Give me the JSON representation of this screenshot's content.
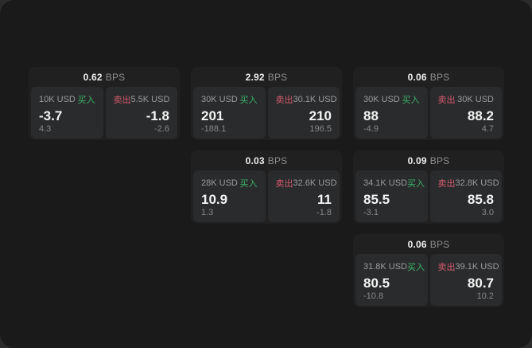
{
  "labels": {
    "bps_unit": "BPS",
    "buy": "买入",
    "sell": "卖出"
  },
  "colors": {
    "buy_accent": "#3cb36c",
    "sell_accent": "#d45a70"
  },
  "cards": [
    {
      "row": 1,
      "col": 1,
      "bps": "0.62",
      "buy": {
        "amount": "10K USD",
        "price": "-3.7",
        "delta": "4.3"
      },
      "sell": {
        "amount": "5.5K USD",
        "price": "-1.8",
        "delta": "-2.6"
      }
    },
    {
      "row": 1,
      "col": 2,
      "bps": "2.92",
      "buy": {
        "amount": "30K USD",
        "price": "201",
        "delta": "-188.1"
      },
      "sell": {
        "amount": "30.1K USD",
        "price": "210",
        "delta": "196.5"
      }
    },
    {
      "row": 1,
      "col": 3,
      "bps": "0.06",
      "buy": {
        "amount": "30K USD",
        "price": "88",
        "delta": "-4.9"
      },
      "sell": {
        "amount": "30K USD",
        "price": "88.2",
        "delta": "4.7"
      }
    },
    {
      "row": 2,
      "col": 2,
      "bps": "0.03",
      "buy": {
        "amount": "28K USD",
        "price": "10.9",
        "delta": "1.3"
      },
      "sell": {
        "amount": "32.6K USD",
        "price": "11",
        "delta": "-1.8"
      }
    },
    {
      "row": 2,
      "col": 3,
      "bps": "0.09",
      "buy": {
        "amount": "34.1K USD",
        "price": "85.5",
        "delta": "-3.1"
      },
      "sell": {
        "amount": "32.8K USD",
        "price": "85.8",
        "delta": "3.0"
      }
    },
    {
      "row": 3,
      "col": 3,
      "bps": "0.06",
      "buy": {
        "amount": "31.8K USD",
        "price": "80.5",
        "delta": "-10.8"
      },
      "sell": {
        "amount": "39.1K USD",
        "price": "80.7",
        "delta": "10.2"
      }
    }
  ]
}
